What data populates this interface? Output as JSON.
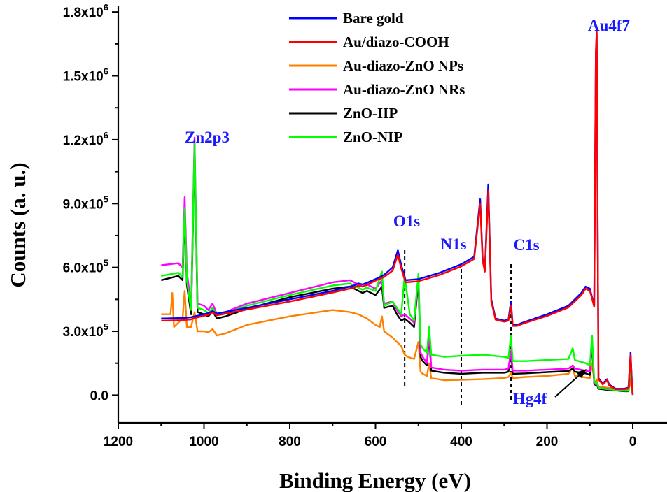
{
  "chart_data": {
    "type": "line",
    "xlabel": "Binding Energy (eV)",
    "ylabel": "Counts (a. u.)",
    "xlim": [
      1200,
      -80
    ],
    "ylim": [
      -130000,
      1830000
    ],
    "x_ticks": [
      1200,
      1000,
      800,
      600,
      400,
      200,
      0
    ],
    "x_tick_labels": [
      "1200",
      "1000",
      "800",
      "600",
      "400",
      "200",
      "0"
    ],
    "y_ticks": [
      0,
      300000,
      600000,
      900000,
      1200000,
      1500000,
      1800000
    ],
    "y_tick_labels": [
      {
        "mantissa": "0.0",
        "exponent": ""
      },
      {
        "mantissa": "3.0x10",
        "exponent": "5"
      },
      {
        "mantissa": "6.0x10",
        "exponent": "5"
      },
      {
        "mantissa": "9.0x10",
        "exponent": "5"
      },
      {
        "mantissa": "1.2x10",
        "exponent": "6"
      },
      {
        "mantissa": "1.5x10",
        "exponent": "6"
      },
      {
        "mantissa": "1.8x10",
        "exponent": "6"
      }
    ],
    "grid": false,
    "legend_position": "top-center",
    "series": [
      {
        "name": "Bare gold",
        "color": "#0000ff",
        "x": [
          1100,
          1050,
          1040,
          1030,
          1022,
          1010,
          990,
          980,
          970,
          900,
          800,
          700,
          650,
          640,
          630,
          620,
          600,
          580,
          560,
          548,
          540,
          530,
          500,
          450,
          400,
          370,
          356,
          350,
          345,
          337,
          330,
          320,
          300,
          290,
          284,
          280,
          270,
          250,
          200,
          150,
          120,
          110,
          100,
          95,
          90,
          86,
          84,
          80,
          70,
          60,
          55,
          40,
          20,
          10,
          5,
          2,
          0
        ],
        "y": [
          360000,
          362000,
          364000,
          366000,
          370000,
          375000,
          385000,
          395000,
          383000,
          410000,
          450000,
          490000,
          515000,
          525000,
          520000,
          528000,
          545000,
          565000,
          600000,
          680000,
          610000,
          540000,
          545000,
          575000,
          615000,
          650000,
          920000,
          640000,
          590000,
          990000,
          450000,
          360000,
          350000,
          355000,
          440000,
          330000,
          330000,
          345000,
          380000,
          420000,
          480000,
          510000,
          500000,
          460000,
          420000,
          1600000,
          1700000,
          80000,
          55000,
          75000,
          50000,
          30000,
          30000,
          35000,
          200000,
          60000,
          5000
        ]
      },
      {
        "name": "Au/diazo-COOH",
        "color": "#ff0000",
        "x": [
          1100,
          1050,
          1040,
          1030,
          1022,
          1010,
          990,
          980,
          970,
          900,
          800,
          700,
          650,
          640,
          630,
          620,
          600,
          580,
          560,
          548,
          540,
          530,
          500,
          450,
          400,
          370,
          356,
          350,
          345,
          337,
          330,
          320,
          300,
          290,
          284,
          280,
          270,
          250,
          200,
          150,
          120,
          110,
          100,
          95,
          90,
          86,
          84,
          80,
          70,
          60,
          55,
          40,
          20,
          10,
          5,
          2,
          0
        ],
        "y": [
          350000,
          352000,
          354000,
          356000,
          362000,
          368000,
          378000,
          388000,
          375000,
          402000,
          440000,
          482000,
          505000,
          515000,
          510000,
          518000,
          538000,
          555000,
          585000,
          660000,
          595000,
          530000,
          535000,
          565000,
          605000,
          640000,
          900000,
          630000,
          580000,
          960000,
          440000,
          355000,
          345000,
          350000,
          420000,
          325000,
          325000,
          340000,
          372000,
          412000,
          470000,
          500000,
          490000,
          455000,
          415000,
          1620000,
          1710000,
          75000,
          50000,
          70000,
          45000,
          28000,
          28000,
          32000,
          190000,
          55000,
          3000
        ]
      },
      {
        "name": "Au-diazo-ZnO NPs",
        "color": "#ff8000",
        "x": [
          1100,
          1078,
          1074,
          1070,
          1060,
          1050,
          1045,
          1040,
          1030,
          1022,
          1015,
          1000,
          990,
          980,
          970,
          950,
          900,
          800,
          700,
          660,
          640,
          620,
          600,
          590,
          585,
          580,
          560,
          550,
          540,
          532,
          525,
          510,
          500,
          495,
          490,
          480,
          475,
          470,
          440,
          400,
          350,
          300,
          290,
          284,
          280,
          250,
          200,
          150,
          140,
          135,
          100,
          95,
          90,
          86,
          84,
          80,
          60,
          40,
          20,
          10,
          5,
          2,
          0
        ],
        "y": [
          380000,
          380000,
          480000,
          320000,
          340000,
          360000,
          490000,
          320000,
          320000,
          390000,
          300000,
          300000,
          295000,
          310000,
          280000,
          290000,
          330000,
          370000,
          400000,
          390000,
          380000,
          360000,
          330000,
          320000,
          370000,
          300000,
          270000,
          250000,
          230000,
          190000,
          180000,
          170000,
          250000,
          110000,
          100000,
          90000,
          150000,
          80000,
          70000,
          72000,
          75000,
          80000,
          85000,
          105000,
          80000,
          85000,
          90000,
          100000,
          130000,
          90000,
          80000,
          150000,
          70000,
          60000,
          75000,
          40000,
          35000,
          30000,
          25000,
          25000,
          60000,
          30000,
          2000
        ]
      },
      {
        "name": "Au-diazo-ZnO NRs",
        "color": "#ff00ff",
        "x": [
          1100,
          1060,
          1050,
          1045,
          1040,
          1030,
          1022,
          1015,
          1000,
          990,
          980,
          970,
          950,
          900,
          800,
          700,
          660,
          650,
          640,
          630,
          620,
          600,
          585,
          580,
          560,
          550,
          540,
          532,
          520,
          510,
          500,
          495,
          490,
          480,
          475,
          470,
          440,
          400,
          350,
          300,
          290,
          284,
          280,
          250,
          200,
          150,
          140,
          135,
          110,
          100,
          95,
          90,
          86,
          84,
          80,
          60,
          40,
          20,
          10,
          5,
          2,
          0
        ],
        "y": [
          610000,
          620000,
          600000,
          930000,
          580000,
          420000,
          1210000,
          430000,
          420000,
          400000,
          430000,
          380000,
          390000,
          430000,
          480000,
          530000,
          540000,
          530000,
          520000,
          510000,
          520000,
          500000,
          540000,
          430000,
          440000,
          400000,
          370000,
          380000,
          360000,
          340000,
          560000,
          200000,
          180000,
          150000,
          300000,
          130000,
          120000,
          115000,
          120000,
          120000,
          125000,
          210000,
          115000,
          115000,
          120000,
          125000,
          140000,
          125000,
          115000,
          110000,
          265000,
          60000,
          50000,
          55000,
          35000,
          30000,
          25000,
          20000,
          20000,
          140000,
          25000,
          2000
        ]
      },
      {
        "name": "ZnO-IIP",
        "color": "#000000",
        "x": [
          1100,
          1060,
          1050,
          1045,
          1040,
          1030,
          1022,
          1015,
          1000,
          990,
          980,
          970,
          950,
          900,
          800,
          700,
          660,
          650,
          640,
          630,
          620,
          600,
          585,
          580,
          560,
          550,
          540,
          532,
          520,
          510,
          500,
          495,
          490,
          480,
          475,
          470,
          440,
          400,
          350,
          300,
          290,
          284,
          280,
          250,
          200,
          150,
          140,
          135,
          110,
          100,
          95,
          90,
          86,
          84,
          80,
          60,
          40,
          20,
          10,
          5,
          2,
          0
        ],
        "y": [
          540000,
          560000,
          540000,
          840000,
          520000,
          380000,
          1150000,
          390000,
          380000,
          370000,
          395000,
          360000,
          370000,
          405000,
          460000,
          500000,
          510000,
          500000,
          490000,
          480000,
          490000,
          470000,
          510000,
          410000,
          420000,
          380000,
          350000,
          360000,
          340000,
          320000,
          540000,
          180000,
          160000,
          140000,
          280000,
          115000,
          105000,
          100000,
          105000,
          105000,
          110000,
          200000,
          100000,
          102000,
          108000,
          113000,
          125000,
          110000,
          102000,
          95000,
          255000,
          55000,
          45000,
          50000,
          30000,
          25000,
          22000,
          18000,
          18000,
          130000,
          22000,
          1000
        ]
      },
      {
        "name": "ZnO-NIP",
        "color": "#00ff00",
        "x": [
          1100,
          1060,
          1050,
          1045,
          1040,
          1030,
          1022,
          1015,
          1000,
          990,
          980,
          970,
          950,
          900,
          800,
          700,
          660,
          650,
          640,
          630,
          620,
          600,
          585,
          580,
          560,
          550,
          540,
          532,
          520,
          510,
          500,
          495,
          490,
          480,
          475,
          470,
          440,
          400,
          350,
          300,
          290,
          284,
          280,
          250,
          200,
          150,
          140,
          135,
          110,
          100,
          95,
          90,
          86,
          84,
          80,
          60,
          40,
          20,
          10,
          5,
          2,
          0
        ],
        "y": [
          560000,
          575000,
          555000,
          880000,
          540000,
          400000,
          1180000,
          410000,
          400000,
          385000,
          410000,
          375000,
          385000,
          420000,
          470000,
          515000,
          525000,
          515000,
          505000,
          495000,
          505000,
          490000,
          580000,
          420000,
          440000,
          410000,
          380000,
          560000,
          380000,
          350000,
          570000,
          240000,
          220000,
          200000,
          320000,
          190000,
          180000,
          185000,
          190000,
          180000,
          175000,
          280000,
          160000,
          160000,
          165000,
          170000,
          220000,
          165000,
          150000,
          140000,
          280000,
          70000,
          55000,
          60000,
          35000,
          28000,
          25000,
          20000,
          20000,
          150000,
          25000,
          2000
        ]
      }
    ],
    "annotations": [
      {
        "text": "Au4f7",
        "color": "#1a1aff"
      },
      {
        "text": "Zn2p3",
        "color": "#1a1aff"
      },
      {
        "text": "O1s",
        "color": "#1a1aff"
      },
      {
        "text": "N1s",
        "color": "#1a1aff"
      },
      {
        "text": "C1s",
        "color": "#1a1aff"
      },
      {
        "text": "Hg4f",
        "color": "#1a1aff"
      }
    ],
    "reference_lines": [
      532,
      400,
      284
    ]
  }
}
